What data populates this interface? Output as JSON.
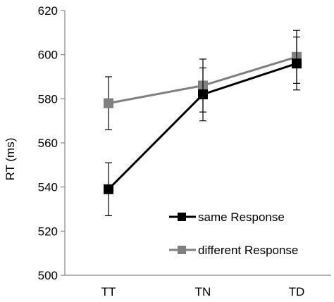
{
  "chart_data": {
    "type": "line",
    "categories": [
      "TT",
      "TN",
      "TD"
    ],
    "ylabel": "RT (ms)",
    "xlabel": "",
    "ylim": [
      500,
      620
    ],
    "yticks": [
      500,
      520,
      540,
      560,
      580,
      600,
      620
    ],
    "grid": false,
    "legend_position": "bottom-right",
    "series": [
      {
        "name": "same Response",
        "values": [
          539,
          582,
          596
        ],
        "errors": [
          12,
          12,
          12
        ],
        "color": "#000000"
      },
      {
        "name": "different Response",
        "values": [
          578,
          586,
          599
        ],
        "errors": [
          12,
          12,
          12
        ],
        "color": "#808080"
      }
    ]
  }
}
